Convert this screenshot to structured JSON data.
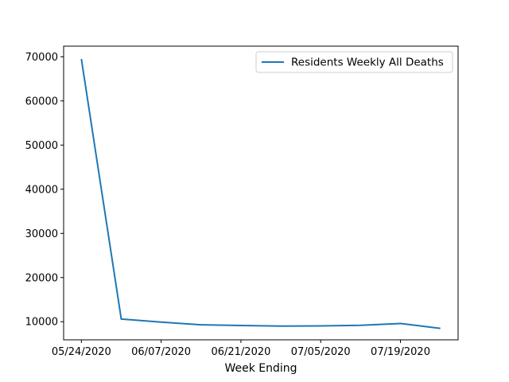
{
  "chart_data": {
    "type": "line",
    "title": "",
    "xlabel": "Week Ending",
    "ylabel": "",
    "x": [
      "05/24/2020",
      "05/31/2020",
      "06/07/2020",
      "06/14/2020",
      "06/21/2020",
      "06/28/2020",
      "07/05/2020",
      "07/12/2020",
      "07/19/2020",
      "07/26/2020"
    ],
    "x_ticks": [
      "05/24/2020",
      "06/07/2020",
      "06/21/2020",
      "07/05/2020",
      "07/19/2020"
    ],
    "y_ticks": [
      10000,
      20000,
      30000,
      40000,
      50000,
      60000,
      70000
    ],
    "ylim": [
      5900,
      72400
    ],
    "series": [
      {
        "name": "Residents Weekly All Deaths",
        "color": "#1f77b4",
        "values": [
          69500,
          10600,
          9900,
          9300,
          9150,
          9000,
          9050,
          9200,
          9600,
          8500
        ]
      }
    ],
    "legend": "top-right",
    "grid": false
  }
}
